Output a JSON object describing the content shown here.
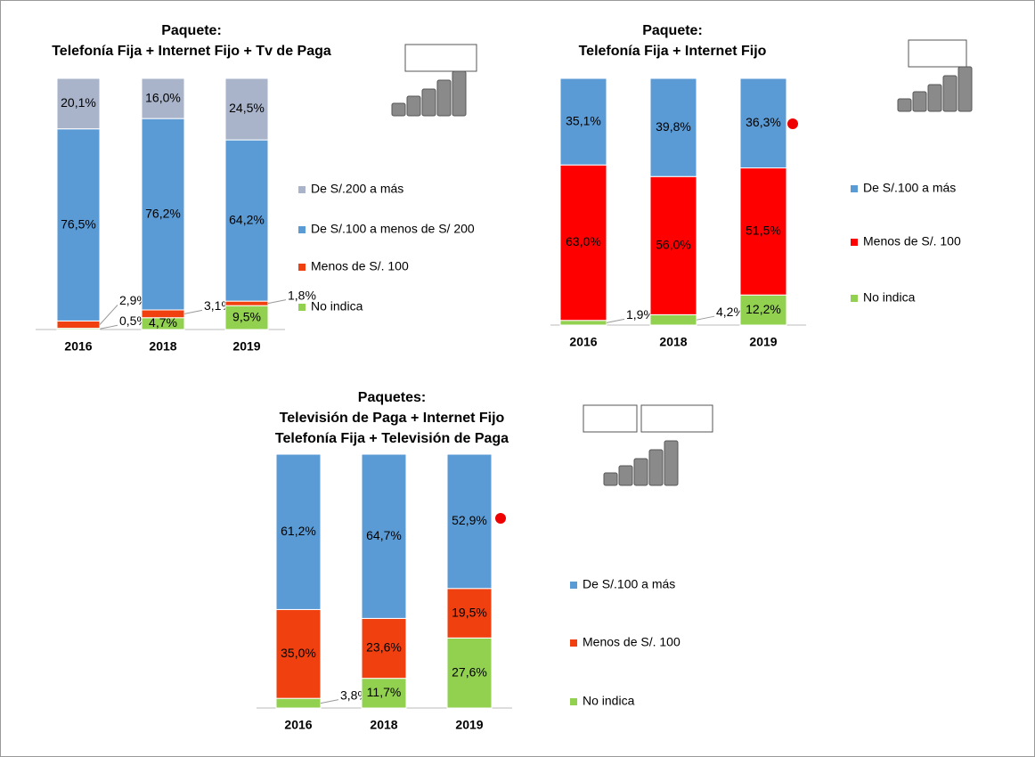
{
  "chart_data": [
    {
      "type": "stacked_bar",
      "title": [
        "Paquete:",
        "Telefonía Fija + Internet Fijo + Tv de Paga"
      ],
      "categories": [
        "2016",
        "2018",
        "2019"
      ],
      "ylim": [
        0,
        100
      ],
      "series": [
        {
          "name": "No indica",
          "color": "#92d050",
          "values": [
            0.5,
            4.7,
            9.5
          ],
          "value_labels": [
            "0,5%",
            "4,7%",
            "9,5%"
          ]
        },
        {
          "name": "Menos de S/. 100",
          "color": "#f0400f",
          "values": [
            2.9,
            3.1,
            1.8
          ],
          "value_labels": [
            "2,9%",
            "3,1%",
            "1,8%"
          ]
        },
        {
          "name": "De S/.100 a menos de S/ 200",
          "color": "#5b9bd5",
          "values": [
            76.5,
            76.2,
            64.2
          ],
          "value_labels": [
            "76,5%",
            "76,2%",
            "64,2%"
          ]
        },
        {
          "name": "De S/.200 a más",
          "color": "#a9b4cb",
          "values": [
            20.1,
            16.0,
            24.5
          ],
          "value_labels": [
            "20,1%",
            "16,0%",
            "24,5%"
          ]
        }
      ]
    },
    {
      "type": "stacked_bar",
      "title": [
        "Paquete:",
        "Telefonía Fija + Internet Fijo"
      ],
      "categories": [
        "2016",
        "2018",
        "2019"
      ],
      "ylim": [
        0,
        100
      ],
      "series": [
        {
          "name": "No indica",
          "color": "#92d050",
          "values": [
            1.9,
            4.2,
            12.2
          ],
          "value_labels": [
            "1,9%",
            "4,2%",
            "12,2%"
          ]
        },
        {
          "name": "Menos de S/. 100",
          "color": "#ff0000",
          "values": [
            63.0,
            56.0,
            51.5
          ],
          "value_labels": [
            "63,0%",
            "56,0%",
            "51,5%"
          ]
        },
        {
          "name": "De S/.100 a más",
          "color": "#5b9bd5",
          "values": [
            35.1,
            39.8,
            36.3
          ],
          "value_labels": [
            "35,1%",
            "39,8%",
            "36,3%"
          ]
        }
      ]
    },
    {
      "type": "stacked_bar",
      "title": [
        "Paquetes:",
        "Televisión de Paga + Internet Fijo",
        "Telefonía Fija + Televisión de Paga"
      ],
      "categories": [
        "2016",
        "2018",
        "2019"
      ],
      "ylim": [
        0,
        100
      ],
      "series": [
        {
          "name": "No indica",
          "color": "#92d050",
          "values": [
            3.8,
            11.7,
            27.6
          ],
          "value_labels": [
            "3,8%",
            "11,7%",
            "27,6%"
          ]
        },
        {
          "name": "Menos de S/. 100",
          "color": "#f0400f",
          "values": [
            35.0,
            23.6,
            19.5
          ],
          "value_labels": [
            "35,0%",
            "23,6%",
            "19,5%"
          ]
        },
        {
          "name": "De S/.100 a más",
          "color": "#5b9bd5",
          "values": [
            61.2,
            64.7,
            52.9
          ],
          "value_labels": [
            "61,2%",
            "64,7%",
            "52,9%"
          ]
        }
      ]
    }
  ]
}
